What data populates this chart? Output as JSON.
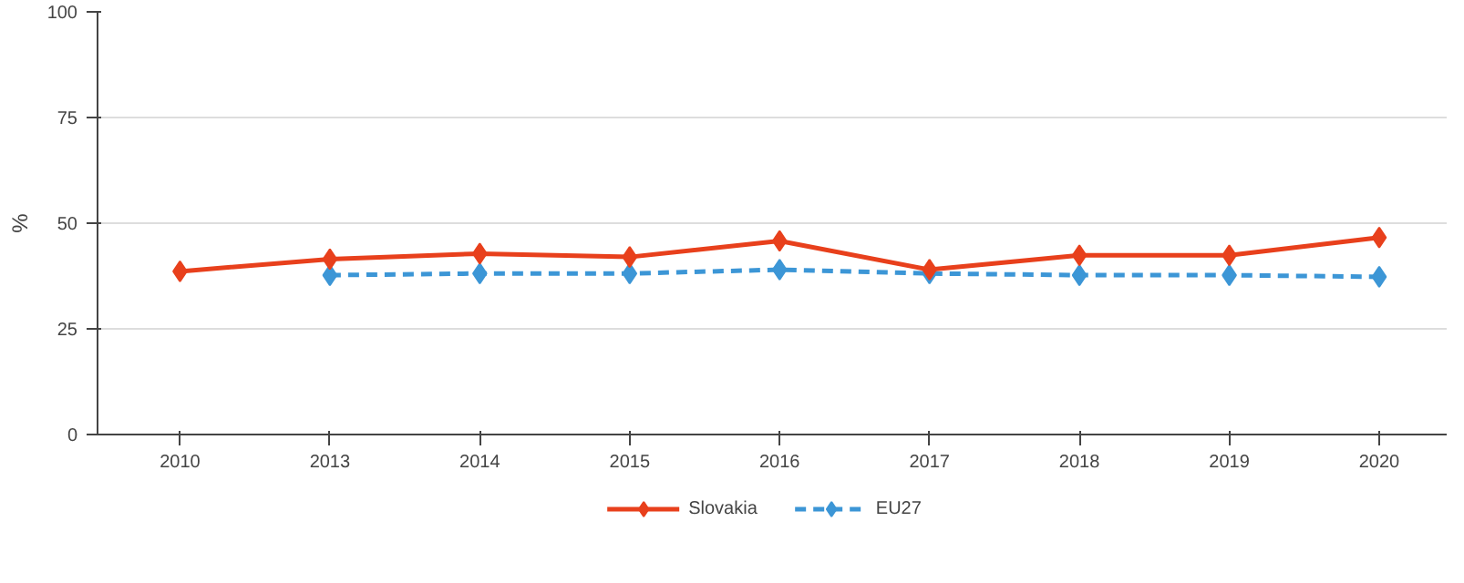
{
  "chart_data": {
    "type": "line",
    "ylabel": "%",
    "categories": [
      "2010",
      "2013",
      "2014",
      "2015",
      "2016",
      "2017",
      "2018",
      "2019",
      "2020"
    ],
    "series": [
      {
        "name": "Slovakia",
        "color": "#e8401c",
        "line_style": "solid",
        "marker": "diamond",
        "values": [
          38.6,
          41.5,
          42.8,
          42,
          45.8,
          39,
          42.4,
          42.4,
          46.6
        ]
      },
      {
        "name": "EU27",
        "color": "#3c96d6",
        "line_style": "dashed",
        "marker": "diamond",
        "values": [
          null,
          37.7,
          38.1,
          38.1,
          39,
          38.1,
          37.7,
          37.7,
          37.3
        ]
      }
    ],
    "ylim": [
      0,
      100
    ],
    "yticks": [
      0,
      25,
      50,
      75,
      100
    ],
    "grid": "y",
    "legend": "bottom"
  }
}
